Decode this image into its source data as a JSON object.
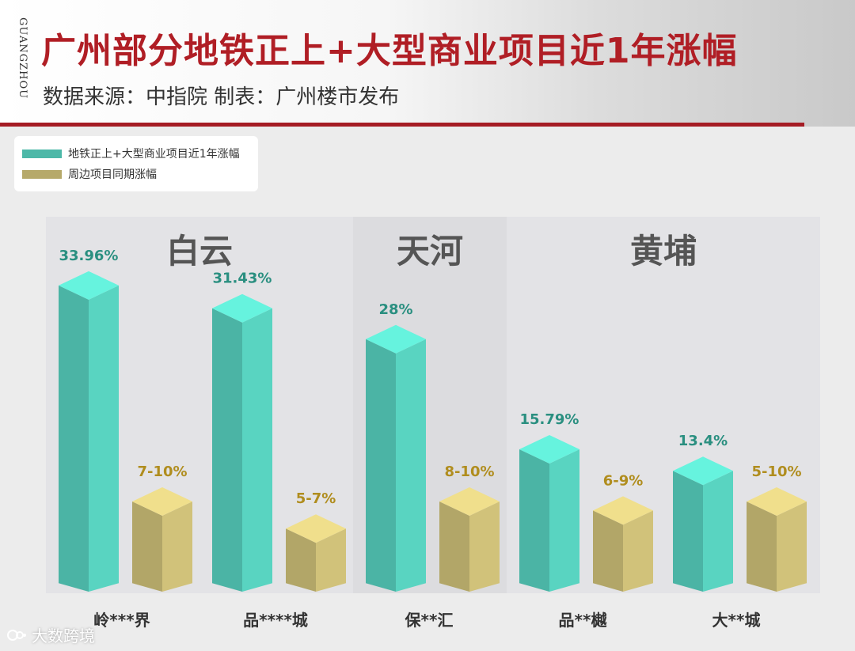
{
  "header": {
    "vertical_text": "GUANGZHOU",
    "title": "广州部分地铁正上+大型商业项目近1年涨幅",
    "subtitle": "数据来源：中指院 制表：广州楼市发布"
  },
  "legend": {
    "items": [
      {
        "label": "地铁正上+大型商业项目近1年涨幅",
        "color": "#4db8a8"
      },
      {
        "label": "周边项目同期涨幅",
        "color": "#b6a96a"
      }
    ]
  },
  "watermark": {
    "text": "大数跨境"
  },
  "chart_data": {
    "type": "bar",
    "title": "广州部分地铁正上+大型商业项目近1年涨幅",
    "categories": [
      "岭***界",
      "品****城",
      "保**汇",
      "品**樾",
      "大**城"
    ],
    "groups": [
      {
        "label": "白云",
        "categories": [
          "岭***界",
          "品****城"
        ]
      },
      {
        "label": "天河",
        "categories": [
          "保**汇"
        ]
      },
      {
        "label": "黄埔",
        "categories": [
          "品**樾",
          "大**城"
        ]
      }
    ],
    "series": [
      {
        "name": "地铁正上+大型商业项目近1年涨幅",
        "values": [
          33.96,
          31.43,
          28,
          15.79,
          13.4
        ],
        "labels": [
          "33.96%",
          "31.43%",
          "28%",
          "15.79%",
          "13.4%"
        ],
        "color": "#4db8a8"
      },
      {
        "name": "周边项目同期涨幅",
        "values": [
          10,
          7,
          10,
          9,
          10
        ],
        "labels": [
          "7-10%",
          "5-7%",
          "8-10%",
          "6-9%",
          "5-10%"
        ],
        "color": "#b6a96a"
      }
    ],
    "ylim": [
      0,
      35
    ],
    "grid": false,
    "legend_position": "top-left"
  }
}
